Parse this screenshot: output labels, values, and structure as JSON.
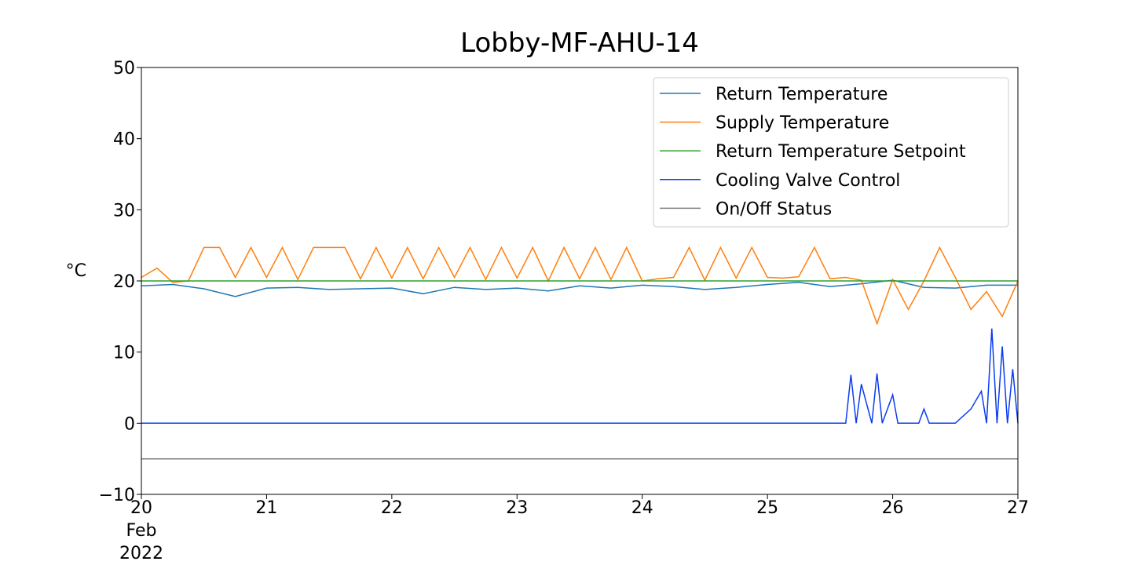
{
  "chart_data": {
    "type": "line",
    "title": "Lobby-MF-AHU-14",
    "ylabel": "°C",
    "xlabel": "",
    "ylim": [
      -10,
      50
    ],
    "xlim": [
      "2022-02-20",
      "2022-02-27"
    ],
    "yticks": [
      -10,
      0,
      10,
      20,
      30,
      40,
      50
    ],
    "ytick_labels": [
      "−10",
      "0",
      "10",
      "20",
      "30",
      "40",
      "50"
    ],
    "xticks": [
      "2022-02-20",
      "2022-02-21",
      "2022-02-22",
      "2022-02-23",
      "2022-02-24",
      "2022-02-25",
      "2022-02-26",
      "2022-02-27"
    ],
    "xtick_labels": [
      [
        "20",
        "Feb",
        "2022"
      ],
      [
        "21"
      ],
      [
        "22"
      ],
      [
        "23"
      ],
      [
        "24"
      ],
      [
        "25"
      ],
      [
        "26"
      ],
      [
        "27"
      ]
    ],
    "grid": false,
    "legend_position": "top-right",
    "series": [
      {
        "name": "Return Temperature",
        "color": "#1f77b4",
        "x": [
          "2022-02-20 00:00",
          "2022-02-20 06:00",
          "2022-02-20 12:00",
          "2022-02-20 18:00",
          "2022-02-21 00:00",
          "2022-02-21 06:00",
          "2022-02-21 12:00",
          "2022-02-21 18:00",
          "2022-02-22 00:00",
          "2022-02-22 06:00",
          "2022-02-22 12:00",
          "2022-02-22 18:00",
          "2022-02-23 00:00",
          "2022-02-23 06:00",
          "2022-02-23 12:00",
          "2022-02-23 18:00",
          "2022-02-24 00:00",
          "2022-02-24 06:00",
          "2022-02-24 12:00",
          "2022-02-24 18:00",
          "2022-02-25 00:00",
          "2022-02-25 06:00",
          "2022-02-25 12:00",
          "2022-02-25 18:00",
          "2022-02-26 00:00",
          "2022-02-26 06:00",
          "2022-02-26 12:00",
          "2022-02-26 18:00",
          "2022-02-27 00:00"
        ],
        "values": [
          19.3,
          19.5,
          18.9,
          17.8,
          19.0,
          19.1,
          18.8,
          18.9,
          19.0,
          18.2,
          19.1,
          18.8,
          19.0,
          18.6,
          19.3,
          19.0,
          19.4,
          19.2,
          18.8,
          19.1,
          19.5,
          19.8,
          19.2,
          19.6,
          20.1,
          19.1,
          19.0,
          19.4,
          19.4
        ]
      },
      {
        "name": "Supply Temperature",
        "color": "#ff7f0e",
        "x": [
          "2022-02-20 00:00",
          "2022-02-20 03:00",
          "2022-02-20 06:00",
          "2022-02-20 09:00",
          "2022-02-20 12:00",
          "2022-02-20 15:00",
          "2022-02-20 18:00",
          "2022-02-20 21:00",
          "2022-02-21 00:00",
          "2022-02-21 03:00",
          "2022-02-21 06:00",
          "2022-02-21 09:00",
          "2022-02-21 12:00",
          "2022-02-21 15:00",
          "2022-02-21 18:00",
          "2022-02-21 21:00",
          "2022-02-22 00:00",
          "2022-02-22 03:00",
          "2022-02-22 06:00",
          "2022-02-22 09:00",
          "2022-02-22 12:00",
          "2022-02-22 15:00",
          "2022-02-22 18:00",
          "2022-02-22 21:00",
          "2022-02-23 00:00",
          "2022-02-23 03:00",
          "2022-02-23 06:00",
          "2022-02-23 09:00",
          "2022-02-23 12:00",
          "2022-02-23 15:00",
          "2022-02-23 18:00",
          "2022-02-23 21:00",
          "2022-02-24 00:00",
          "2022-02-24 03:00",
          "2022-02-24 06:00",
          "2022-02-24 09:00",
          "2022-02-24 12:00",
          "2022-02-24 15:00",
          "2022-02-24 18:00",
          "2022-02-24 21:00",
          "2022-02-25 00:00",
          "2022-02-25 03:00",
          "2022-02-25 06:00",
          "2022-02-25 09:00",
          "2022-02-25 12:00",
          "2022-02-25 15:00",
          "2022-02-25 18:00",
          "2022-02-25 21:00",
          "2022-02-26 00:00",
          "2022-02-26 03:00",
          "2022-02-26 06:00",
          "2022-02-26 09:00",
          "2022-02-26 12:00",
          "2022-02-26 15:00",
          "2022-02-26 18:00",
          "2022-02-26 21:00",
          "2022-02-27 00:00"
        ],
        "values": [
          20.5,
          21.8,
          19.8,
          20.0,
          24.7,
          24.7,
          20.5,
          24.7,
          20.5,
          24.7,
          20.2,
          24.7,
          24.7,
          24.7,
          20.3,
          24.7,
          20.4,
          24.7,
          20.3,
          24.7,
          20.5,
          24.7,
          20.2,
          24.7,
          20.4,
          24.7,
          20.0,
          24.7,
          20.3,
          24.7,
          20.2,
          24.7,
          20.0,
          20.3,
          20.5,
          24.7,
          20.1,
          24.7,
          20.4,
          24.7,
          20.5,
          20.4,
          20.6,
          24.7,
          20.3,
          20.5,
          20.1,
          14.0,
          20.2,
          16.0,
          20.0,
          24.7,
          20.5,
          16.0,
          18.5,
          15.0,
          20.0
        ]
      },
      {
        "name": "Return Temperature Setpoint",
        "color": "#2ca02c",
        "x": [
          "2022-02-20 00:00",
          "2022-02-27 00:00"
        ],
        "values": [
          20,
          20
        ]
      },
      {
        "name": "Cooling Valve Control",
        "color": "#0a3cf0",
        "x": [
          "2022-02-20 00:00",
          "2022-02-25 15:00",
          "2022-02-25 16:00",
          "2022-02-25 17:00",
          "2022-02-25 18:00",
          "2022-02-25 20:00",
          "2022-02-25 21:00",
          "2022-02-25 22:00",
          "2022-02-26 00:00",
          "2022-02-26 01:00",
          "2022-02-26 05:00",
          "2022-02-26 06:00",
          "2022-02-26 07:00",
          "2022-02-26 12:00",
          "2022-02-26 15:00",
          "2022-02-26 17:00",
          "2022-02-26 18:00",
          "2022-02-26 19:00",
          "2022-02-26 20:00",
          "2022-02-26 21:00",
          "2022-02-26 22:00",
          "2022-02-26 23:00",
          "2022-02-27 00:00"
        ],
        "values": [
          0,
          0,
          6.8,
          0,
          5.5,
          0,
          7.0,
          0,
          4.0,
          0,
          0,
          2.0,
          0,
          0,
          2.0,
          4.5,
          0,
          13.3,
          0,
          10.8,
          0,
          7.6,
          0
        ]
      },
      {
        "name": "On/Off Status",
        "color": "#7f7f7f",
        "x": [
          "2022-02-20 00:00",
          "2022-02-27 00:00"
        ],
        "values": [
          -5,
          -5
        ]
      }
    ]
  }
}
